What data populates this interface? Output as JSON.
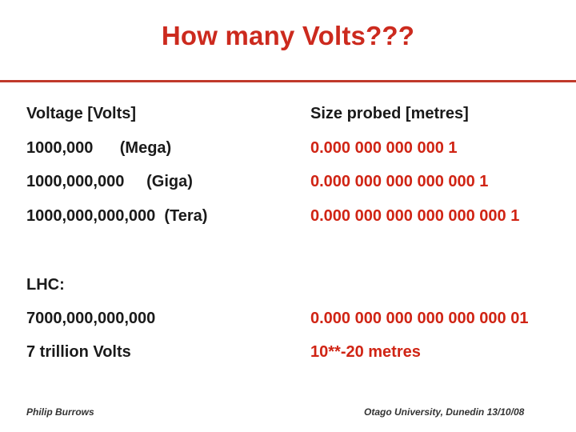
{
  "title": "How many Volts???",
  "headers": {
    "voltage": "Voltage [Volts]",
    "size": "Size probed [metres]"
  },
  "rows": [
    {
      "voltage": "1000,000      (Mega)",
      "size": "0.000 000 000 000 1"
    },
    {
      "voltage": "1000,000,000     (Giga)",
      "size": "0.000 000 000 000 000 1"
    },
    {
      "voltage": "1000,000,000,000  (Tera)",
      "size": "0.000 000 000 000 000 000 1"
    }
  ],
  "lhc": {
    "label": "LHC:",
    "voltage": "7000,000,000,000",
    "voltage_words": "7 trillion Volts",
    "size": "0.000 000 000 000 000 000 01",
    "size_words": "10**-20 metres"
  },
  "footer": {
    "author": "Philip Burrows",
    "venue": "Otago University, Dunedin 13/10/08"
  }
}
